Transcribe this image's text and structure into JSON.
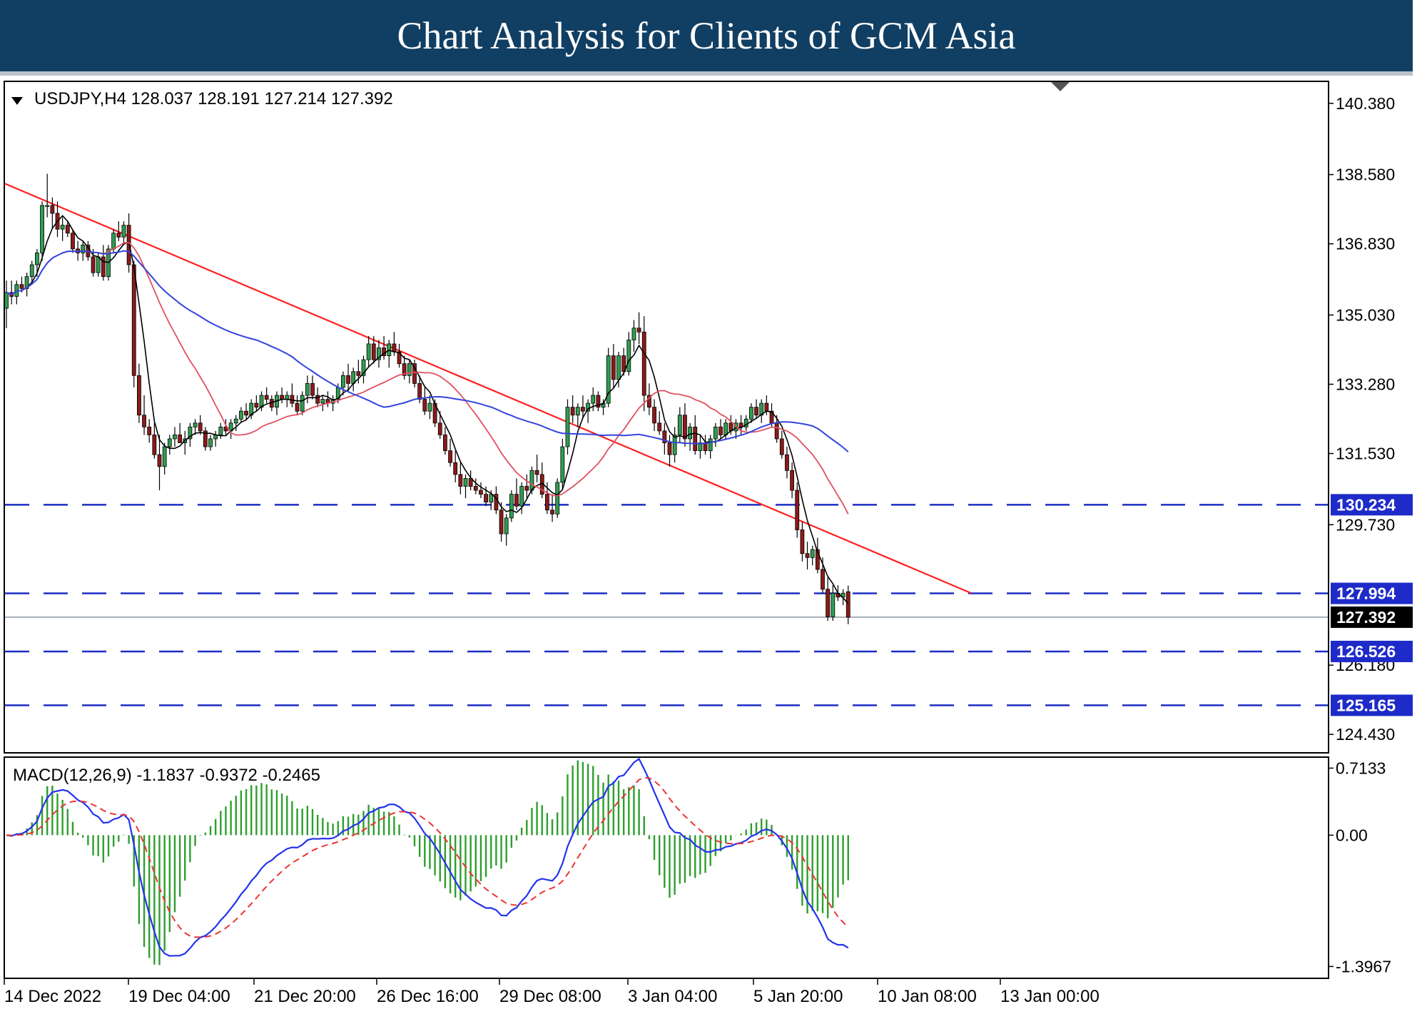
{
  "banner": {
    "title": "Chart Analysis for Clients of GCM Asia"
  },
  "chart_header": {
    "symbol": "USDJPY,H4",
    "open": "128.037",
    "high": "128.191",
    "low": "127.214",
    "close": "127.392"
  },
  "macd_header": {
    "label": "MACD(12,26,9)",
    "main": "-1.1837",
    "signal": "-0.9372",
    "histogram": "-0.2465"
  },
  "colors": {
    "banner": "#113f63",
    "bull_candle": "#2e9e4f",
    "bear_candle": "#8b1a1a",
    "trendline": "#ff2020",
    "ma_black": "#000000",
    "ma_red": "#e05060",
    "ma_blue": "#3344dd",
    "level_line": "#1c2ec4",
    "level_badge": "#1e2bc8",
    "current_badge": "#000000",
    "macd_hist": "#2e9e2e",
    "macd_main": "#2233ee",
    "macd_signal": "#ee3333"
  },
  "chart_data": [
    {
      "type": "candlestick",
      "title": "USDJPY,H4",
      "ylim": [
        124.0,
        140.9
      ],
      "y_ticks": [
        "140.380",
        "138.580",
        "136.830",
        "135.030",
        "133.280",
        "131.530",
        "129.730",
        "126.180",
        "124.430"
      ],
      "x_ticks": [
        "14 Dec 2022",
        "19 Dec 04:00",
        "21 Dec 20:00",
        "26 Dec 16:00",
        "29 Dec 08:00",
        "3 Jan 04:00",
        "5 Jan 20:00",
        "10 Jan 08:00",
        "13 Jan 00:00"
      ],
      "current_price": "127.392",
      "levels": [
        "130.234",
        "127.994",
        "126.526",
        "125.165"
      ],
      "trendline": {
        "from": [
          0,
          138.35
        ],
        "to": [
          188,
          128.0
        ]
      },
      "ohlc": [
        [
          135.2,
          135.9,
          134.7,
          135.6
        ],
        [
          135.6,
          135.9,
          135.3,
          135.5
        ],
        [
          135.5,
          135.9,
          135.3,
          135.8
        ],
        [
          135.8,
          136.0,
          135.6,
          135.7
        ],
        [
          135.7,
          136.1,
          135.5,
          136.0
        ],
        [
          136.0,
          136.4,
          135.8,
          136.3
        ],
        [
          136.3,
          136.7,
          136.0,
          136.6
        ],
        [
          136.6,
          137.9,
          136.4,
          137.8
        ],
        [
          137.8,
          138.6,
          137.5,
          137.8
        ],
        [
          137.8,
          138.0,
          137.2,
          137.6
        ],
        [
          137.6,
          137.9,
          137.0,
          137.2
        ],
        [
          137.2,
          137.5,
          136.9,
          137.3
        ],
        [
          137.3,
          137.4,
          137.0,
          137.1
        ],
        [
          137.1,
          137.2,
          136.6,
          136.7
        ],
        [
          136.7,
          136.9,
          136.4,
          136.6
        ],
        [
          136.6,
          136.9,
          136.4,
          136.8
        ],
        [
          136.8,
          136.9,
          136.4,
          136.5
        ],
        [
          136.5,
          136.7,
          136.0,
          136.1
        ],
        [
          136.1,
          136.6,
          136.0,
          136.5
        ],
        [
          136.5,
          136.8,
          135.9,
          136.0
        ],
        [
          136.0,
          136.8,
          135.9,
          136.7
        ],
        [
          136.7,
          137.2,
          136.6,
          137.1
        ],
        [
          137.1,
          137.4,
          136.9,
          137.0
        ],
        [
          137.0,
          137.4,
          136.8,
          137.3
        ],
        [
          137.3,
          137.6,
          136.1,
          136.3
        ],
        [
          136.3,
          136.4,
          133.2,
          133.5
        ],
        [
          133.5,
          133.8,
          132.3,
          132.5
        ],
        [
          132.5,
          133.0,
          132.0,
          132.2
        ],
        [
          132.2,
          132.4,
          131.8,
          132.0
        ],
        [
          132.0,
          132.3,
          131.4,
          131.5
        ],
        [
          131.5,
          132.0,
          130.6,
          131.2
        ],
        [
          131.2,
          131.8,
          131.0,
          131.7
        ],
        [
          131.7,
          132.0,
          131.5,
          131.9
        ],
        [
          131.9,
          132.2,
          131.7,
          132.0
        ],
        [
          132.0,
          132.3,
          131.8,
          131.8
        ],
        [
          131.8,
          132.1,
          131.5,
          131.9
        ],
        [
          131.9,
          132.3,
          131.7,
          132.2
        ],
        [
          132.2,
          132.4,
          132.0,
          132.3
        ],
        [
          132.3,
          132.5,
          132.0,
          132.1
        ],
        [
          132.1,
          132.2,
          131.6,
          131.7
        ],
        [
          131.7,
          132.0,
          131.6,
          131.9
        ],
        [
          131.9,
          132.1,
          131.7,
          132.0
        ],
        [
          132.0,
          132.3,
          131.9,
          132.2
        ],
        [
          132.2,
          132.4,
          132.0,
          132.1
        ],
        [
          132.1,
          132.4,
          131.9,
          132.3
        ],
        [
          132.3,
          132.5,
          132.1,
          132.4
        ],
        [
          132.4,
          132.7,
          132.3,
          132.6
        ],
        [
          132.6,
          132.8,
          132.4,
          132.5
        ],
        [
          132.5,
          132.9,
          132.4,
          132.8
        ],
        [
          132.8,
          133.0,
          132.6,
          132.7
        ],
        [
          132.7,
          133.1,
          132.6,
          133.0
        ],
        [
          133.0,
          133.2,
          132.8,
          132.9
        ],
        [
          132.9,
          133.0,
          132.6,
          132.7
        ],
        [
          132.7,
          133.1,
          132.5,
          133.0
        ],
        [
          133.0,
          133.2,
          132.8,
          132.9
        ],
        [
          132.9,
          133.1,
          132.7,
          133.0
        ],
        [
          133.0,
          133.3,
          132.7,
          132.8
        ],
        [
          132.8,
          133.0,
          132.5,
          132.6
        ],
        [
          132.6,
          133.1,
          132.5,
          133.0
        ],
        [
          133.0,
          133.5,
          132.8,
          133.3
        ],
        [
          133.3,
          133.5,
          132.9,
          133.0
        ],
        [
          133.0,
          133.2,
          132.7,
          132.8
        ],
        [
          132.8,
          133.0,
          132.6,
          132.9
        ],
        [
          132.9,
          133.1,
          132.7,
          132.8
        ],
        [
          132.8,
          133.0,
          132.6,
          132.9
        ],
        [
          132.9,
          133.3,
          132.8,
          133.2
        ],
        [
          133.2,
          133.6,
          133.0,
          133.5
        ],
        [
          133.5,
          133.8,
          133.1,
          133.3
        ],
        [
          133.3,
          133.7,
          133.1,
          133.6
        ],
        [
          133.6,
          133.9,
          133.3,
          133.5
        ],
        [
          133.5,
          134.0,
          133.3,
          133.9
        ],
        [
          133.9,
          134.5,
          133.7,
          134.3
        ],
        [
          134.3,
          134.5,
          133.8,
          133.9
        ],
        [
          133.9,
          134.4,
          133.7,
          134.2
        ],
        [
          134.2,
          134.5,
          133.9,
          134.0
        ],
        [
          134.0,
          134.4,
          133.7,
          134.3
        ],
        [
          134.3,
          134.6,
          134.0,
          134.1
        ],
        [
          134.1,
          134.3,
          133.7,
          133.8
        ],
        [
          133.8,
          134.0,
          133.4,
          133.5
        ],
        [
          133.5,
          133.9,
          133.3,
          133.8
        ],
        [
          133.8,
          133.9,
          133.2,
          133.3
        ],
        [
          133.3,
          133.5,
          132.8,
          132.9
        ],
        [
          132.9,
          133.2,
          132.5,
          132.6
        ],
        [
          132.6,
          133.0,
          132.4,
          132.8
        ],
        [
          132.8,
          132.9,
          132.2,
          132.3
        ],
        [
          132.3,
          132.6,
          131.9,
          132.0
        ],
        [
          132.0,
          132.2,
          131.5,
          131.6
        ],
        [
          131.6,
          131.9,
          131.2,
          131.3
        ],
        [
          131.3,
          131.6,
          130.8,
          131.0
        ],
        [
          131.0,
          131.3,
          130.5,
          130.7
        ],
        [
          130.7,
          131.0,
          130.4,
          130.9
        ],
        [
          130.9,
          131.1,
          130.6,
          130.7
        ],
        [
          130.7,
          130.9,
          130.5,
          130.6
        ],
        [
          130.6,
          130.8,
          130.4,
          130.5
        ],
        [
          130.5,
          130.7,
          130.2,
          130.3
        ],
        [
          130.3,
          130.6,
          130.1,
          130.5
        ],
        [
          130.5,
          130.7,
          130.0,
          130.1
        ],
        [
          130.1,
          130.3,
          129.3,
          129.5
        ],
        [
          129.5,
          130.0,
          129.2,
          129.9
        ],
        [
          129.9,
          130.6,
          129.8,
          130.5
        ],
        [
          130.5,
          130.9,
          130.1,
          130.2
        ],
        [
          130.2,
          130.8,
          130.0,
          130.7
        ],
        [
          130.7,
          131.0,
          130.4,
          130.6
        ],
        [
          130.6,
          131.2,
          130.5,
          131.1
        ],
        [
          131.1,
          131.5,
          130.8,
          131.0
        ],
        [
          131.0,
          131.3,
          130.4,
          130.5
        ],
        [
          130.5,
          130.8,
          130.0,
          130.1
        ],
        [
          130.1,
          130.5,
          129.8,
          130.0
        ],
        [
          130.0,
          130.9,
          129.9,
          130.8
        ],
        [
          130.8,
          131.9,
          130.6,
          131.7
        ],
        [
          131.7,
          132.9,
          131.5,
          132.7
        ],
        [
          132.7,
          133.0,
          132.3,
          132.5
        ],
        [
          132.5,
          132.8,
          132.2,
          132.7
        ],
        [
          132.7,
          133.0,
          132.4,
          132.6
        ],
        [
          132.6,
          132.9,
          132.3,
          132.8
        ],
        [
          132.8,
          133.2,
          132.6,
          133.0
        ],
        [
          133.0,
          133.1,
          132.6,
          132.7
        ],
        [
          132.7,
          132.9,
          132.5,
          132.8
        ],
        [
          132.8,
          134.2,
          132.7,
          134.0
        ],
        [
          134.0,
          134.3,
          133.2,
          133.4
        ],
        [
          133.4,
          134.1,
          133.2,
          134.0
        ],
        [
          134.0,
          134.2,
          133.5,
          133.6
        ],
        [
          133.6,
          134.6,
          133.5,
          134.4
        ],
        [
          134.4,
          134.9,
          134.1,
          134.7
        ],
        [
          134.7,
          135.1,
          134.3,
          134.6
        ],
        [
          134.6,
          135.0,
          132.6,
          133.0
        ],
        [
          133.0,
          133.3,
          132.5,
          132.7
        ],
        [
          132.7,
          132.9,
          132.1,
          132.3
        ],
        [
          132.3,
          132.6,
          132.0,
          132.1
        ],
        [
          132.1,
          132.3,
          131.5,
          131.8
        ],
        [
          131.8,
          132.0,
          131.2,
          131.5
        ],
        [
          131.5,
          132.2,
          131.3,
          132.0
        ],
        [
          132.0,
          132.7,
          131.8,
          132.5
        ],
        [
          132.5,
          132.8,
          131.7,
          131.9
        ],
        [
          131.9,
          132.3,
          131.6,
          132.2
        ],
        [
          132.2,
          132.5,
          131.5,
          131.6
        ],
        [
          131.6,
          132.0,
          131.4,
          131.8
        ],
        [
          131.8,
          132.0,
          131.5,
          131.6
        ],
        [
          131.6,
          132.0,
          131.4,
          131.9
        ],
        [
          131.9,
          132.3,
          131.7,
          132.2
        ],
        [
          132.2,
          132.4,
          131.9,
          132.0
        ],
        [
          132.0,
          132.4,
          131.9,
          132.3
        ],
        [
          132.3,
          132.5,
          132.0,
          132.1
        ],
        [
          132.1,
          132.4,
          131.9,
          132.3
        ],
        [
          132.3,
          132.5,
          132.0,
          132.2
        ],
        [
          132.2,
          132.5,
          132.1,
          132.4
        ],
        [
          132.4,
          132.8,
          132.3,
          132.7
        ],
        [
          132.7,
          132.9,
          132.4,
          132.5
        ],
        [
          132.5,
          132.9,
          132.3,
          132.8
        ],
        [
          132.8,
          133.0,
          132.5,
          132.6
        ],
        [
          132.6,
          132.8,
          132.2,
          132.3
        ],
        [
          132.3,
          132.5,
          131.8,
          131.9
        ],
        [
          131.9,
          132.1,
          131.4,
          131.5
        ],
        [
          131.5,
          131.7,
          130.9,
          131.1
        ],
        [
          131.1,
          131.3,
          130.4,
          130.6
        ],
        [
          130.6,
          130.8,
          129.4,
          129.6
        ],
        [
          129.6,
          129.8,
          128.8,
          129.0
        ],
        [
          129.0,
          129.3,
          128.6,
          128.9
        ],
        [
          128.9,
          129.2,
          128.7,
          129.1
        ],
        [
          129.1,
          129.4,
          128.5,
          128.6
        ],
        [
          128.6,
          128.9,
          128.0,
          128.1
        ],
        [
          128.1,
          128.4,
          127.3,
          127.4
        ],
        [
          127.4,
          128.2,
          127.3,
          128.0
        ],
        [
          128.0,
          128.2,
          127.8,
          127.9
        ],
        [
          127.9,
          128.1,
          127.7,
          128.0
        ],
        [
          128.037,
          128.191,
          127.214,
          127.392
        ]
      ]
    },
    {
      "type": "line",
      "title": "MACD(12,26,9)",
      "y_ticks": [
        "0.7133",
        "0.00",
        "-1.3967"
      ],
      "ylim": [
        -1.5,
        0.8
      ],
      "series": [
        {
          "name": "MACD",
          "values": []
        },
        {
          "name": "Signal",
          "values": []
        },
        {
          "name": "Histogram",
          "values": []
        }
      ]
    }
  ]
}
